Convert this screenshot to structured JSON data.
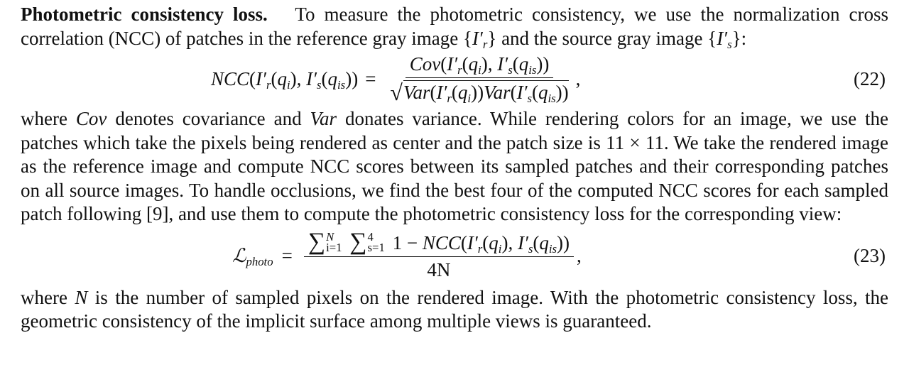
{
  "para1": {
    "heading": "Photometric consistency loss.",
    "text_a": "To measure the photometric consistency, we use the normalization cross correlation (NCC) of patches in the reference gray image",
    "text_b": "and the source gray image",
    "text_c": ":"
  },
  "eq22": {
    "number": "(22)",
    "lhs": "NCC",
    "num_fn": "Cov",
    "den_fn": "Var"
  },
  "para2": {
    "text_a": "where",
    "cov": "Cov",
    "text_b": "denotes covariance and",
    "var": "Var",
    "text_c": "donates variance. While rendering colors for an image, we use the patches which take the pixels being rendered as center and the patch size is 11 × 11. We take the rendered image as the reference image and compute NCC scores between its sampled patches and their corresponding patches on all source images. To handle occlusions, we find the best four of the computed NCC scores for each sampled patch following [9], and use them to compute the photometric consistency loss for the corresponding view:"
  },
  "eq23": {
    "number": "(23)",
    "lhs_sub": "photo",
    "one_minus": "1 − ",
    "ncc": "NCC",
    "den": "4N",
    "upper_i": "N",
    "lower_i": "i=1",
    "upper_s": "4",
    "lower_s": "s=1"
  },
  "para3": {
    "text_a": "where",
    "n": "N",
    "text_b": "is the number of sampled pixels on the rendered image. With the photometric consistency loss, the geometric consistency of the implicit surface among multiple views is guaranteed."
  }
}
